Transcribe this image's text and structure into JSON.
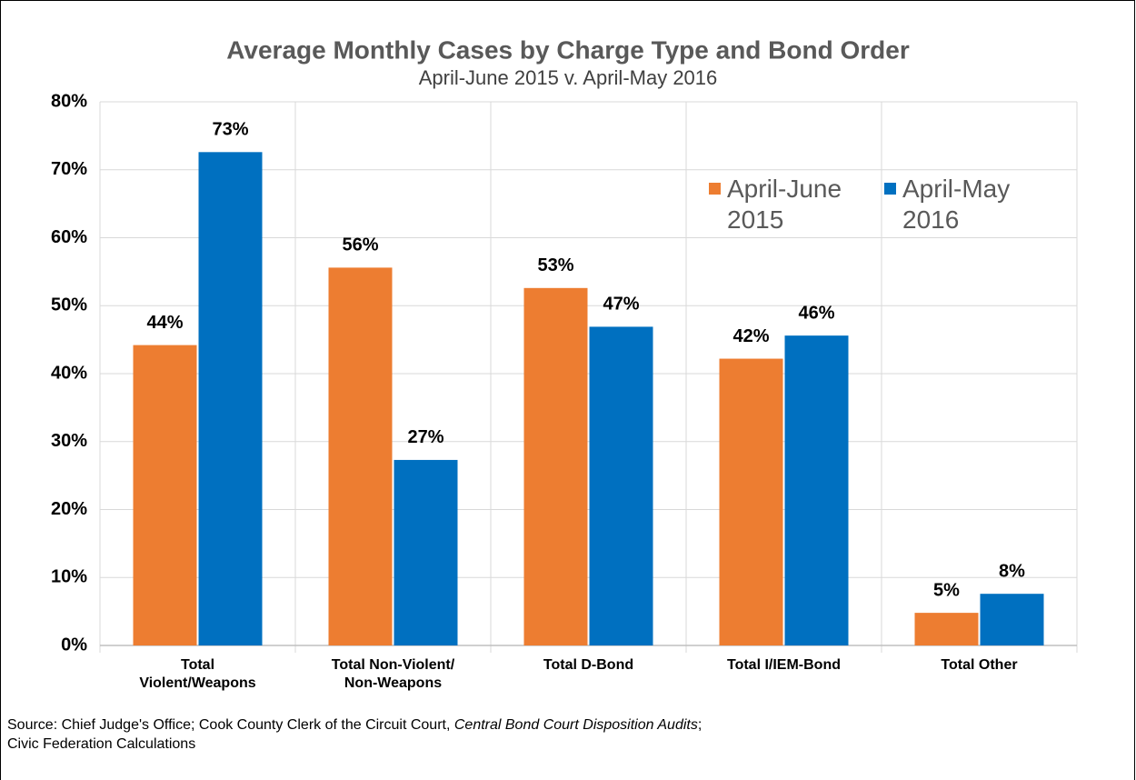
{
  "chart_data": {
    "type": "bar",
    "title": "Average Monthly Cases by Charge Type and Bond Order",
    "subtitle": "April-June 2015 v. April-May 2016",
    "categories": [
      "Total\nViolent/Weapons",
      "Total Non-Violent/\nNon-Weapons",
      "Total D-Bond",
      "Total I/IEM-Bond",
      "Total Other"
    ],
    "series": [
      {
        "name": "April-June\n2015",
        "color": "#ed7d31",
        "values": [
          44.2,
          55.6,
          52.6,
          42.2,
          4.8
        ],
        "value_labels": [
          "44%",
          "56%",
          "53%",
          "42%",
          "5%"
        ]
      },
      {
        "name": "April-May\n2016",
        "color": "#0070c0",
        "values": [
          72.6,
          27.3,
          46.9,
          45.6,
          7.6
        ],
        "value_labels": [
          "73%",
          "27%",
          "47%",
          "46%",
          "8%"
        ]
      }
    ],
    "ylim": [
      0,
      80
    ],
    "yticks": [
      {
        "value": 0,
        "label": "0%"
      },
      {
        "value": 10,
        "label": "10%"
      },
      {
        "value": 20,
        "label": "20%"
      },
      {
        "value": 30,
        "label": "30%"
      },
      {
        "value": 40,
        "label": "40%"
      },
      {
        "value": 50,
        "label": "50%"
      },
      {
        "value": 60,
        "label": "60%"
      },
      {
        "value": 70,
        "label": "70%"
      },
      {
        "value": 80,
        "label": "80%"
      }
    ],
    "grid": true,
    "legend": "top-right",
    "notes": [
      "Source: Chief Judge's Office; Cook County Clerk of the Circuit Court, ",
      "Central Bond Court Disposition Audits",
      ";",
      "Civic Federation Calculations"
    ]
  }
}
